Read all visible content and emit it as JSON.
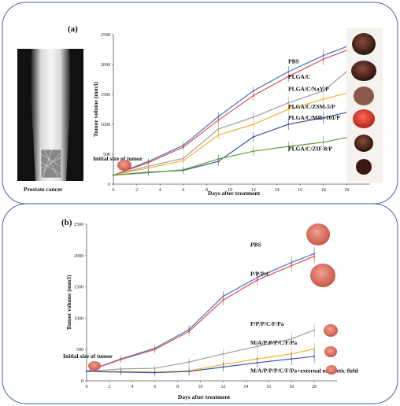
{
  "panels": {
    "a": {
      "label": "(a)",
      "photo_caption": "Prostate cancer"
    },
    "b": {
      "label": "(b)"
    }
  },
  "colors": {
    "frame": "#4a63a8"
  },
  "chart_data": [
    {
      "type": "line",
      "panel": "a",
      "xlabel": "Days after treatment",
      "ylabel": "Tumor volume (mm3)",
      "xlim": [
        0,
        22
      ],
      "ylim": [
        0,
        2500
      ],
      "xticks": [
        0,
        2,
        4,
        6,
        8,
        10,
        12,
        14,
        16,
        18,
        20
      ],
      "yticks": [
        0,
        500,
        1000,
        1500,
        2000,
        2500
      ],
      "annotation": "Initial size of tumor",
      "x": [
        0,
        3,
        6,
        9,
        12,
        15,
        18,
        20
      ],
      "series": [
        {
          "name": "PBS",
          "color": "#4472c4",
          "values": [
            150,
            380,
            650,
            1130,
            1560,
            1880,
            2150,
            2300
          ],
          "label_y": 2020
        },
        {
          "name": "PLGA/C",
          "color": "#d9534f",
          "values": [
            150,
            360,
            620,
            1070,
            1480,
            1800,
            2090,
            2240
          ],
          "label_y": 1760
        },
        {
          "name": "PLGA/C/NaY/P",
          "color": "#9e9e9e",
          "values": [
            150,
            300,
            430,
            920,
            1120,
            1360,
            1560,
            1880
          ],
          "label_y": 1560
        },
        {
          "name": "PLGA/C/ZSM-5/P",
          "color": "#f2b330",
          "values": [
            150,
            270,
            390,
            820,
            1000,
            1250,
            1420,
            1520
          ],
          "label_y": 1260
        },
        {
          "name": "PLGA/C/MIL-101/P",
          "color": "#3f57a8",
          "values": [
            150,
            200,
            230,
            380,
            790,
            1000,
            1110,
            1200
          ],
          "label_y": 1080
        },
        {
          "name": "PLGA/C/ZIF-8/P",
          "color": "#5a9e3a",
          "values": [
            150,
            190,
            240,
            420,
            550,
            630,
            700,
            780
          ],
          "label_y": 560
        }
      ]
    },
    {
      "type": "line",
      "panel": "b",
      "xlabel": "Days after treatment",
      "ylabel": "Tumor volume (mm3)",
      "xlim": [
        0,
        22
      ],
      "ylim": [
        0,
        2500
      ],
      "xticks": [
        0,
        2,
        4,
        6,
        8,
        10,
        12,
        14,
        16,
        18,
        20
      ],
      "yticks": [
        0,
        500,
        1000,
        1500,
        2000,
        2500
      ],
      "annotation": "Initial size of tumor",
      "x": [
        0,
        3,
        6,
        9,
        12,
        15,
        18,
        20
      ],
      "series": [
        {
          "name": "PBS",
          "color": "#4472c4",
          "values": [
            150,
            350,
            520,
            820,
            1350,
            1650,
            1890,
            2030
          ],
          "label_y": 2140
        },
        {
          "name": "P/P/P/C",
          "color": "#d9534f",
          "values": [
            150,
            340,
            500,
            790,
            1290,
            1610,
            1840,
            1990
          ],
          "label_y": 1680
        },
        {
          "name": "P/P/P/C/F/Pa",
          "color": "#9e9e9e",
          "values": [
            150,
            190,
            200,
            300,
            430,
            550,
            670,
            810
          ],
          "label_y": 880
        },
        {
          "name": "M/A/P/P/P/C/F/Pa",
          "color": "#f2b330",
          "values": [
            150,
            150,
            140,
            160,
            260,
            350,
            430,
            510
          ],
          "label_y": 580
        },
        {
          "name": "M/A/P/P/P/C/F/Pa+external magnetic field",
          "color": "#3f57a8",
          "values": [
            150,
            140,
            130,
            150,
            220,
            290,
            350,
            390
          ],
          "label_y": 130
        }
      ]
    }
  ]
}
